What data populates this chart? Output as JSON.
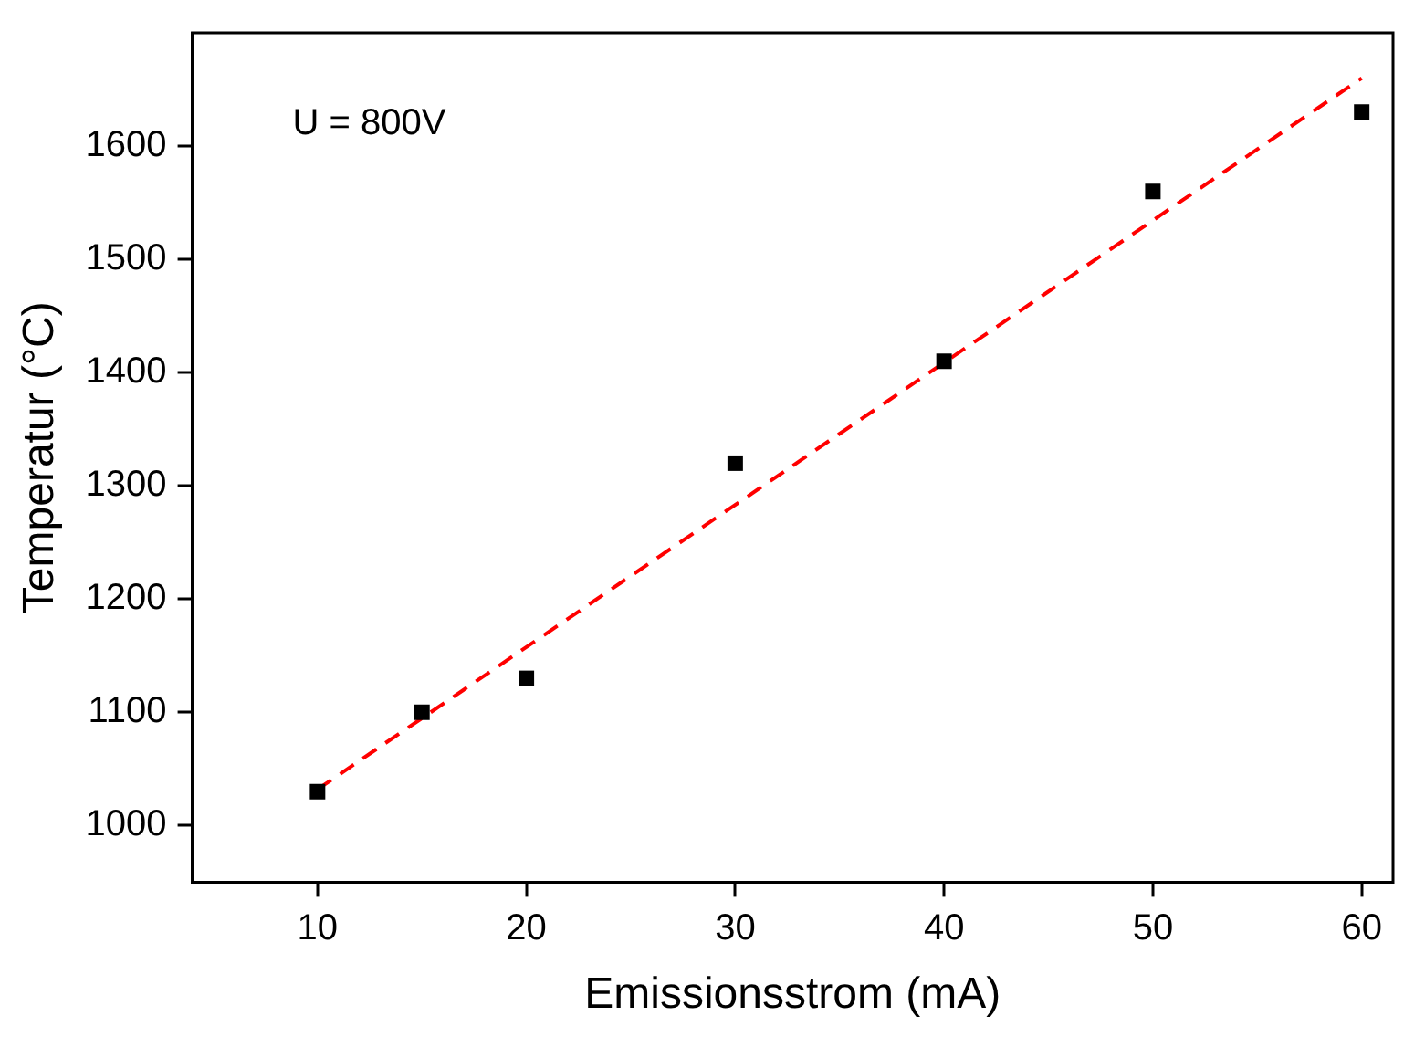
{
  "chart_data": {
    "type": "scatter",
    "xlabel": "Emissionsstrom (mA)",
    "ylabel": "Temperatur (°C)",
    "annotations": [
      "U = 800V"
    ],
    "xlim": [
      4,
      61.5
    ],
    "xticks": [
      10,
      20,
      30,
      40,
      50,
      60
    ],
    "ylim": [
      950,
      1700
    ],
    "yticks": [
      1000,
      1100,
      1200,
      1300,
      1400,
      1500,
      1600
    ],
    "grid": false,
    "legend": false,
    "series": [
      {
        "color": "#000000",
        "marker": "square",
        "x": [
          10,
          15,
          20,
          30,
          40,
          50,
          60
        ],
        "values": [
          1030,
          1100,
          1130,
          1320,
          1410,
          1560,
          1630
        ]
      },
      {
        "type": "line",
        "color": "#ff0000",
        "marker": "none",
        "line_style": "dashed",
        "x": [
          10,
          60
        ],
        "values": [
          1032,
          1660
        ]
      }
    ]
  }
}
